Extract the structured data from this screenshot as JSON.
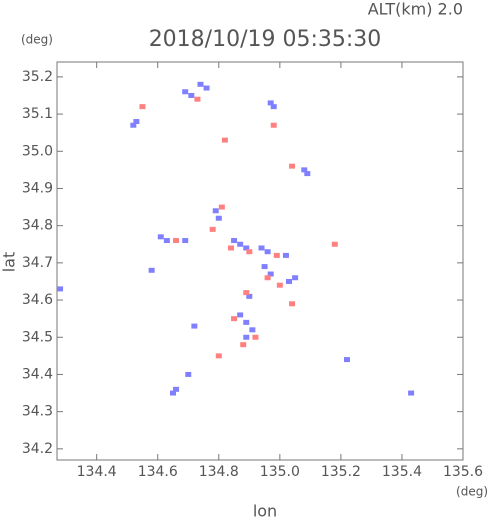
{
  "chart_data": {
    "type": "scatter",
    "title": "2018/10/19 05:35:30",
    "subtitle": "ALT(km) 2.0",
    "x_label": "lon",
    "x_unit": "(deg)",
    "y_label": "lat",
    "y_unit": "(deg)",
    "xlim": [
      134.27,
      135.6
    ],
    "ylim": [
      34.17,
      35.24
    ],
    "xticks": [
      134.4,
      134.6,
      134.8,
      {
        "value": 135,
        "label": "135.0"
      },
      135.2,
      135.4,
      135.6
    ],
    "yticks": [
      34.2,
      34.3,
      34.4,
      34.5,
      34.6,
      34.7,
      34.8,
      34.9,
      {
        "value": 35,
        "label": "35.0"
      },
      35.1,
      35.2
    ],
    "series": [
      {
        "color": "#8080ff",
        "x": [
          134.52,
          134.53,
          134.69,
          134.71,
          134.74,
          134.76,
          134.97,
          134.98,
          135.08,
          135.09,
          134.79,
          134.8,
          134.61,
          134.63,
          134.69,
          134.85,
          134.87,
          134.89,
          134.94,
          134.96,
          135.02,
          134.95,
          134.97,
          135.03,
          135.05,
          134.9,
          134.87,
          134.89,
          134.91,
          134.89,
          134.72,
          134.65,
          134.66,
          134.7,
          135.43,
          134.58,
          134.28,
          135.22
        ],
        "y": [
          35.07,
          35.08,
          35.16,
          35.15,
          35.18,
          35.17,
          35.13,
          35.12,
          34.95,
          34.94,
          34.84,
          34.82,
          34.77,
          34.76,
          34.76,
          34.76,
          34.75,
          34.74,
          34.74,
          34.73,
          34.72,
          34.69,
          34.67,
          34.65,
          34.66,
          34.61,
          34.56,
          34.54,
          34.52,
          34.5,
          34.53,
          34.35,
          34.36,
          34.4,
          34.35,
          34.68,
          34.63,
          34.44
        ]
      },
      {
        "color": "#ff8080",
        "x": [
          134.55,
          134.73,
          134.98,
          134.82,
          135.04,
          134.81,
          134.78,
          134.66,
          134.84,
          134.9,
          134.99,
          134.96,
          135.0,
          135.18,
          134.89,
          134.85,
          134.92,
          134.88,
          134.8,
          135.04
        ],
        "y": [
          35.12,
          35.14,
          35.07,
          35.03,
          34.96,
          34.85,
          34.79,
          34.76,
          34.74,
          34.73,
          34.72,
          34.66,
          34.64,
          34.75,
          34.62,
          34.55,
          34.5,
          34.48,
          34.45,
          34.59
        ]
      }
    ]
  }
}
